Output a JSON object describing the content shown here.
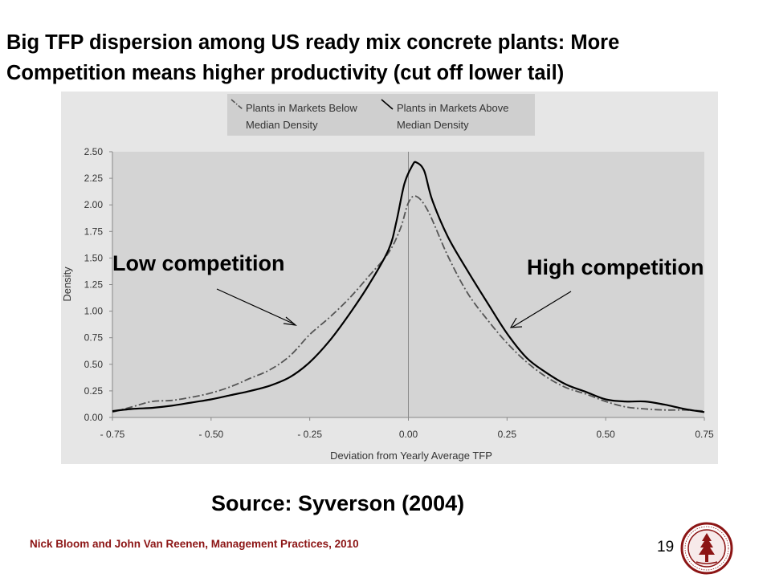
{
  "slide": {
    "title_line1": "Big TFP dispersion among US ready mix concrete plants: More",
    "title_line2": "Competition means higher productivity (cut off lower tail)",
    "source": "Source: Syverson (2004)",
    "footer": "Nick Bloom and John Van Reenen, Management Practices, 2010",
    "page_number": "19"
  },
  "annotations": {
    "low": "Low competition",
    "high": "High competition"
  },
  "colors": {
    "footer": "#8c1515",
    "plot_bg": "#d4d4d4",
    "line": "#000000",
    "dashed": "#555555"
  },
  "chart_data": {
    "type": "line",
    "title": "",
    "xlabel": "Deviation from Yearly Average TFP",
    "ylabel": "Density",
    "xlim": [
      -0.75,
      0.75
    ],
    "ylim": [
      0,
      2.5
    ],
    "xticks": [
      -0.75,
      -0.5,
      -0.25,
      0.0,
      0.25,
      0.5,
      0.75
    ],
    "xtick_labels": [
      "- 0.75",
      "- 0.50",
      "- 0.25",
      "0.00",
      "0.25",
      "0.50",
      "0.75"
    ],
    "yticks": [
      0,
      0.25,
      0.5,
      0.75,
      1.0,
      1.25,
      1.5,
      1.75,
      2.0,
      2.25,
      2.5
    ],
    "ytick_labels": [
      "0.00",
      "0.25",
      "0.50",
      "0.75",
      "1.00",
      "1.25",
      "1.50",
      "1.75",
      "2.00",
      "2.25",
      "2.50"
    ],
    "grid": false,
    "reference_line_x": 0.0,
    "legend_position": "top",
    "series": [
      {
        "name": "Plants in Markets Below Median Density",
        "legend_line1": "Plants in Markets Below",
        "legend_line2": "Median Density",
        "style": "dash-dot",
        "x": [
          -0.75,
          -0.7,
          -0.65,
          -0.6,
          -0.55,
          -0.5,
          -0.45,
          -0.4,
          -0.35,
          -0.3,
          -0.25,
          -0.2,
          -0.15,
          -0.1,
          -0.05,
          -0.02,
          0.0,
          0.02,
          0.05,
          0.1,
          0.15,
          0.2,
          0.25,
          0.3,
          0.35,
          0.4,
          0.45,
          0.5,
          0.55,
          0.6,
          0.65,
          0.7,
          0.75
        ],
        "y": [
          0.05,
          0.1,
          0.15,
          0.16,
          0.19,
          0.23,
          0.29,
          0.37,
          0.45,
          0.58,
          0.78,
          0.94,
          1.12,
          1.33,
          1.55,
          1.78,
          2.02,
          2.08,
          1.94,
          1.52,
          1.17,
          0.92,
          0.7,
          0.52,
          0.38,
          0.28,
          0.22,
          0.15,
          0.1,
          0.08,
          0.07,
          0.07,
          0.06
        ]
      },
      {
        "name": "Plants in Markets Above Median Density",
        "legend_line1": "Plants in Markets Above",
        "legend_line2": "Median Density",
        "style": "solid",
        "x": [
          -0.75,
          -0.7,
          -0.65,
          -0.6,
          -0.55,
          -0.5,
          -0.45,
          -0.4,
          -0.35,
          -0.3,
          -0.25,
          -0.2,
          -0.15,
          -0.1,
          -0.05,
          -0.03,
          -0.01,
          0.01,
          0.02,
          0.04,
          0.06,
          0.1,
          0.15,
          0.2,
          0.25,
          0.3,
          0.35,
          0.4,
          0.45,
          0.5,
          0.55,
          0.6,
          0.65,
          0.7,
          0.75
        ],
        "y": [
          0.06,
          0.08,
          0.09,
          0.11,
          0.14,
          0.17,
          0.21,
          0.25,
          0.3,
          0.38,
          0.52,
          0.72,
          0.97,
          1.25,
          1.58,
          1.85,
          2.2,
          2.37,
          2.4,
          2.32,
          2.05,
          1.7,
          1.38,
          1.08,
          0.79,
          0.56,
          0.42,
          0.31,
          0.24,
          0.17,
          0.15,
          0.15,
          0.12,
          0.08,
          0.05
        ]
      }
    ]
  }
}
